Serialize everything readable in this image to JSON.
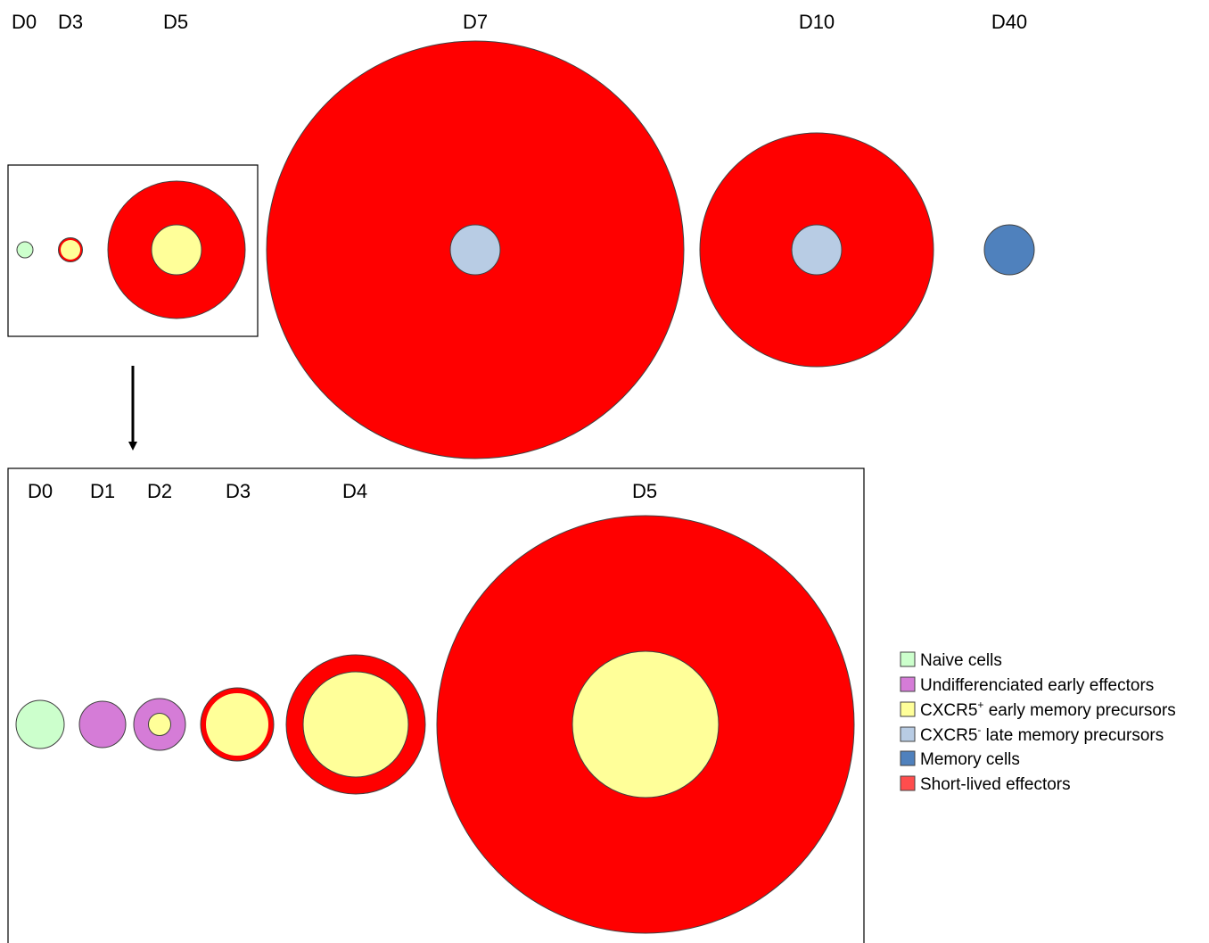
{
  "colors": {
    "naive": "#ccffcc",
    "undiff": "#d57cd7",
    "cxcr5_pos": "#ffff99",
    "cxcr5_neg": "#b8cce4",
    "memory": "#4f81bd",
    "effector": "#ff0000",
    "effector_legend": "#ff4d4d"
  },
  "top_panel": {
    "days": [
      "D0",
      "D3",
      "D5",
      "D7",
      "D10",
      "D40"
    ]
  },
  "bottom_panel": {
    "days": [
      "D0",
      "D1",
      "D2",
      "D3",
      "D4",
      "D5"
    ]
  },
  "legend": [
    {
      "key": "naive",
      "label": "Naive cells",
      "sup": "",
      "rest": ""
    },
    {
      "key": "undiff",
      "label": "Undifferenciated early effectors",
      "sup": "",
      "rest": ""
    },
    {
      "key": "cxcr5_pos",
      "label": "CXCR5",
      "sup": "+",
      "rest": " early memory precursors"
    },
    {
      "key": "cxcr5_neg",
      "label": "CXCR5",
      "sup": "-",
      "rest": " late memory precursors"
    },
    {
      "key": "memory",
      "label": "Memory cells",
      "sup": "",
      "rest": ""
    },
    {
      "key": "effector",
      "label": "Short-lived effectors",
      "sup": "",
      "rest": ""
    }
  ]
}
